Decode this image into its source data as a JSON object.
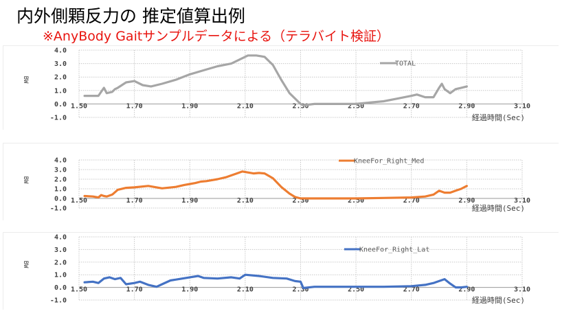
{
  "header": {
    "title": "内外側顆反力の 推定値算出例",
    "subtitle": "※AnyBody Gaitサンプルデータによる（テラバイト検証）"
  },
  "chart_data": [
    {
      "type": "line",
      "xlabel": "経過時間(Sec)",
      "ylabel": "BW",
      "xlim": [
        1.5,
        3.1
      ],
      "ylim": [
        -1.0,
        4.0
      ],
      "xticks": [
        "1.50",
        "1.70",
        "1.90",
        "2.10",
        "2.30",
        "2.50",
        "2.70",
        "2.90",
        "3.10"
      ],
      "yticks": [
        "4.0",
        "3.0",
        "2.0",
        "1.0",
        "0.0",
        "-1.0"
      ],
      "grid": true,
      "legend_position": "top-right",
      "series": [
        {
          "name": "TOTAL",
          "color": "#a6a6a6",
          "x": [
            1.52,
            1.55,
            1.57,
            1.59,
            1.6,
            1.62,
            1.63,
            1.64,
            1.67,
            1.7,
            1.73,
            1.76,
            1.8,
            1.85,
            1.9,
            1.95,
            2.0,
            2.05,
            2.08,
            2.11,
            2.14,
            2.17,
            2.2,
            2.23,
            2.26,
            2.29,
            2.3,
            2.31,
            2.35,
            2.4,
            2.45,
            2.5,
            2.55,
            2.6,
            2.65,
            2.7,
            2.72,
            2.75,
            2.78,
            2.8,
            2.81,
            2.82,
            2.84,
            2.86,
            2.88,
            2.9
          ],
          "values": [
            0.6,
            0.6,
            0.6,
            1.2,
            0.8,
            0.9,
            1.1,
            1.2,
            1.6,
            1.7,
            1.4,
            1.3,
            1.5,
            1.8,
            2.2,
            2.5,
            2.8,
            3.0,
            3.3,
            3.6,
            3.6,
            3.5,
            2.9,
            1.8,
            0.8,
            0.2,
            0.0,
            -0.1,
            0.0,
            0.0,
            0.0,
            0.0,
            0.1,
            0.2,
            0.4,
            0.6,
            0.7,
            0.5,
            0.5,
            1.2,
            1.5,
            1.1,
            0.8,
            1.1,
            1.2,
            1.3
          ]
        },
        {
          "name": "KneeFor_Right_Med",
          "color": "#ed7d31",
          "x": [
            1.52,
            1.55,
            1.57,
            1.58,
            1.59,
            1.6,
            1.62,
            1.64,
            1.67,
            1.7,
            1.75,
            1.8,
            1.85,
            1.88,
            1.9,
            1.92,
            1.94,
            1.96,
            2.0,
            2.03,
            2.06,
            2.09,
            2.11,
            2.13,
            2.15,
            2.17,
            2.2,
            2.23,
            2.26,
            2.28,
            2.3,
            2.35,
            2.4,
            2.5,
            2.6,
            2.7,
            2.75,
            2.78,
            2.8,
            2.82,
            2.84,
            2.86,
            2.88,
            2.9
          ],
          "values": [
            0.25,
            0.2,
            0.1,
            0.35,
            0.25,
            0.2,
            0.4,
            0.9,
            1.1,
            1.15,
            1.3,
            1.05,
            1.2,
            1.4,
            1.5,
            1.6,
            1.75,
            1.8,
            2.0,
            2.2,
            2.5,
            2.8,
            2.7,
            2.6,
            2.65,
            2.6,
            2.1,
            1.2,
            0.5,
            0.15,
            0.0,
            0.0,
            0.0,
            0.0,
            0.05,
            0.1,
            0.2,
            0.4,
            0.8,
            0.6,
            0.6,
            0.8,
            1.0,
            1.3
          ]
        },
        {
          "name": "KneeFor_Right_Lat",
          "color": "#4472c4",
          "x": [
            1.52,
            1.55,
            1.57,
            1.59,
            1.61,
            1.63,
            1.65,
            1.67,
            1.7,
            1.72,
            1.75,
            1.78,
            1.8,
            1.83,
            1.86,
            1.9,
            1.93,
            1.95,
            2.0,
            2.05,
            2.08,
            2.1,
            2.15,
            2.2,
            2.25,
            2.28,
            2.3,
            2.31,
            2.35,
            2.4,
            2.5,
            2.6,
            2.7,
            2.75,
            2.78,
            2.8,
            2.82,
            2.84,
            2.86,
            2.88,
            2.9
          ],
          "values": [
            0.4,
            0.45,
            0.35,
            0.7,
            0.8,
            0.65,
            0.75,
            0.25,
            0.35,
            0.45,
            0.2,
            0.05,
            0.25,
            0.55,
            0.65,
            0.8,
            0.9,
            0.75,
            0.7,
            0.8,
            0.7,
            1.0,
            0.9,
            0.75,
            0.7,
            0.5,
            0.45,
            -0.05,
            0.05,
            0.05,
            0.05,
            0.05,
            0.1,
            0.2,
            0.35,
            0.5,
            0.65,
            0.3,
            0.0,
            0.0,
            0.05
          ]
        }
      ]
    }
  ]
}
